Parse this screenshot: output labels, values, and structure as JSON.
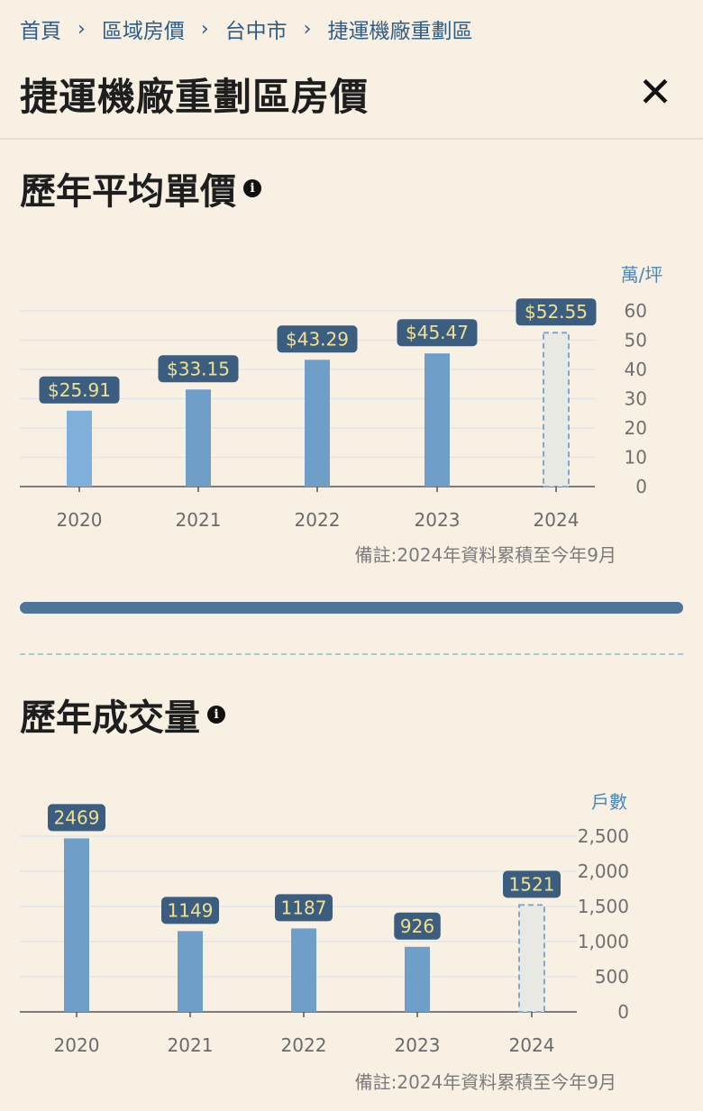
{
  "breadcrumb": {
    "items": [
      "首頁",
      "區域房價",
      "台中市",
      "捷運機廠重劃區"
    ]
  },
  "header": {
    "title": "捷運機廠重劃區房價",
    "close_icon": "close-icon"
  },
  "price_section": {
    "title": "歷年平均單價",
    "note": "備註:2024年資料累積至今年9月"
  },
  "volume_section": {
    "title": "歷年成交量",
    "note": "備註:2024年資料累積至今年9月"
  },
  "colors": {
    "bar": "#6f9fc9",
    "bar_first": "#7fb0dc",
    "label_bg": "#3b5e80",
    "label_text": "#f3e08c",
    "unit_text": "#4a86b8",
    "estimate_fill": "#e9e9e4",
    "estimate_stroke": "#7ea8cf"
  },
  "chart_data": [
    {
      "type": "bar",
      "categories": [
        "2020",
        "2021",
        "2022",
        "2023",
        "2024"
      ],
      "values": [
        25.91,
        33.15,
        43.29,
        45.47,
        52.55
      ],
      "data_labels": [
        "$25.91",
        "$33.15",
        "$43.29",
        "$45.47",
        "$52.55"
      ],
      "ylabel": "萬/坪",
      "ylim": [
        0,
        60
      ],
      "yticks": [
        0,
        10,
        20,
        30,
        40,
        50,
        60
      ],
      "ytick_labels": [
        "0",
        "10",
        "20",
        "30",
        "40",
        "50",
        "60"
      ],
      "partial_last": true,
      "grid": true,
      "y_axis_side": "right"
    },
    {
      "type": "bar",
      "categories": [
        "2020",
        "2021",
        "2022",
        "2023",
        "2024"
      ],
      "values": [
        2469,
        1149,
        1187,
        926,
        1521
      ],
      "data_labels": [
        "2469",
        "1149",
        "1187",
        "926",
        "1521"
      ],
      "ylabel": "戶數",
      "ylim": [
        0,
        2500
      ],
      "yticks": [
        0,
        500,
        1000,
        1500,
        2000,
        2500
      ],
      "ytick_labels": [
        "0",
        "500",
        "1,000",
        "1,500",
        "2,000",
        "2,500"
      ],
      "partial_last": true,
      "grid": true,
      "y_axis_side": "right"
    }
  ]
}
